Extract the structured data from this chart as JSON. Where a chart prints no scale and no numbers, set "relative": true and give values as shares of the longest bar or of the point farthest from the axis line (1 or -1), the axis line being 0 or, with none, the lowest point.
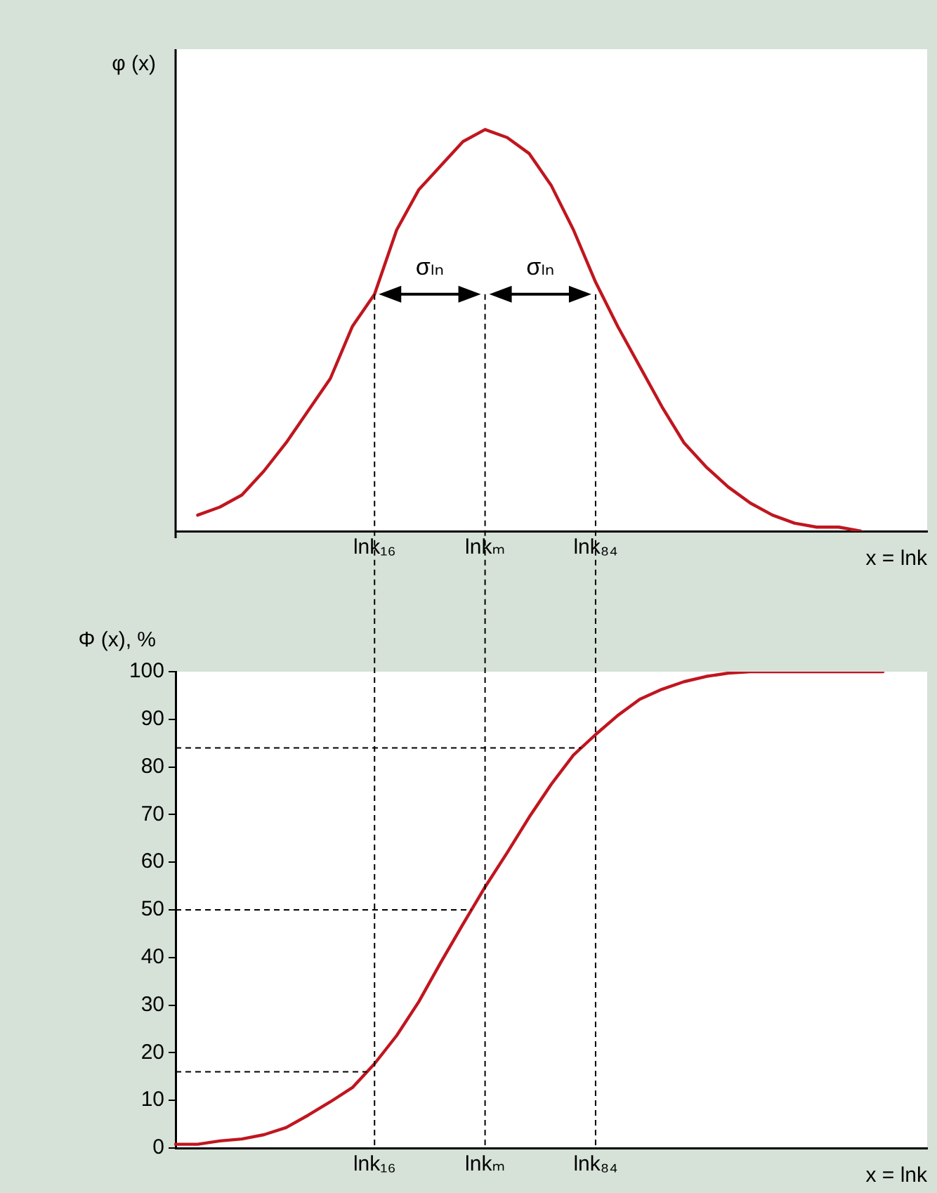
{
  "chart_data": [
    {
      "type": "line",
      "relative": true,
      "ylabel": "φ (x)",
      "xlabel": "x = lnk",
      "tick_labels": "x",
      "categories": [
        null,
        null,
        null,
        null,
        null,
        null,
        null,
        null,
        null,
        "lnk₁₆",
        null,
        null,
        null,
        null,
        "lnkₘ",
        null,
        null,
        null,
        null,
        "lnk₈₄",
        null,
        null,
        null,
        null,
        null,
        null,
        null,
        null,
        null,
        null,
        null,
        null,
        null,
        null,
        null
      ],
      "series": [
        {
          "color": "#c0161f",
          "values": [
            null,
            0.04,
            0.06,
            0.09,
            0.15,
            0.22,
            0.3,
            0.38,
            0.51,
            0.59,
            0.75,
            0.85,
            0.91,
            0.97,
            1,
            0.98,
            0.94,
            0.86,
            0.75,
            0.62,
            0.51,
            0.41,
            0.31,
            0.22,
            0.16,
            0.11,
            0.07,
            0.04,
            0.02,
            0.01,
            0.01,
            0,
            null,
            null,
            null
          ]
        }
      ],
      "ref_lines": [
        {
          "axis": "x",
          "value": "lnk₁₆",
          "line_style": "dashed",
          "color": "#000000"
        },
        {
          "axis": "x",
          "value": "lnkₘ",
          "line_style": "dashed",
          "color": "#000000"
        },
        {
          "axis": "x",
          "value": "lnk₈₄",
          "line_style": "dashed",
          "color": "#000000"
        }
      ],
      "annotations": [
        "σₗₙ",
        "σₗₙ"
      ]
    },
    {
      "type": "line",
      "ylabel": "Φ (x), %",
      "xlabel": "x = lnk",
      "categories": [
        null,
        null,
        null,
        null,
        null,
        null,
        null,
        null,
        null,
        "lnk₁₆",
        null,
        null,
        null,
        null,
        "lnkₘ",
        null,
        null,
        null,
        null,
        "lnk₈₄",
        null,
        null,
        null,
        null,
        null,
        null,
        null,
        null,
        null,
        null,
        null,
        null,
        null,
        null,
        null
      ],
      "ylim": [
        0,
        100
      ],
      "yticks": [
        0,
        10,
        20,
        30,
        40,
        50,
        60,
        70,
        80,
        90,
        100
      ],
      "series": [
        {
          "color": "#c0161f",
          "values": [
            0.8,
            0.8,
            1.5,
            1.9,
            2.8,
            4.3,
            6.9,
            9.7,
            12.7,
            17.7,
            23.6,
            30.7,
            39,
            47,
            54.8,
            62,
            69.5,
            76.4,
            82.5,
            86.8,
            90.8,
            94.2,
            96.3,
            97.9,
            99,
            99.7,
            100,
            100,
            100,
            100,
            100,
            100,
            100,
            null,
            null
          ]
        }
      ],
      "ref_lines": [
        {
          "axis": "x",
          "value": "lnk₁₆",
          "line_style": "dashed",
          "color": "#000000"
        },
        {
          "axis": "x",
          "value": "lnkₘ",
          "line_style": "dashed",
          "color": "#000000"
        },
        {
          "axis": "x",
          "value": "lnk₈₄",
          "line_style": "dashed",
          "color": "#000000"
        },
        {
          "axis": "y",
          "value": 16,
          "line_style": "dashed",
          "color": "#000000"
        },
        {
          "axis": "y",
          "value": 50,
          "line_style": "dashed",
          "color": "#000000"
        },
        {
          "axis": "y",
          "value": 84,
          "line_style": "dashed",
          "color": "#000000"
        }
      ]
    }
  ]
}
